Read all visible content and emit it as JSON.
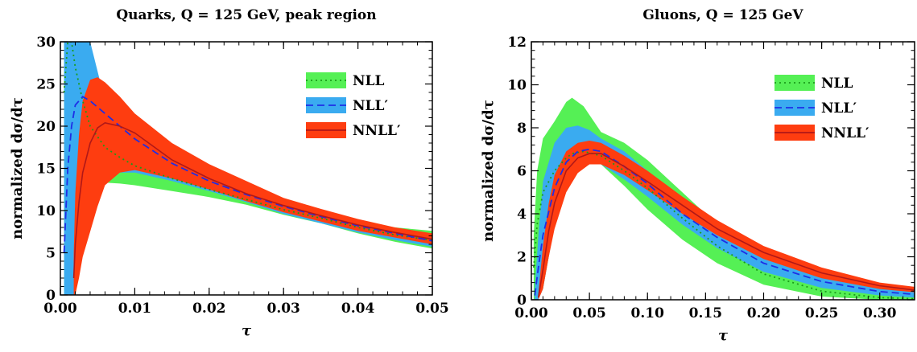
{
  "chart_data": [
    {
      "type": "area",
      "title": "Quarks, Q = 125 GeV, peak region",
      "xlabel": "τ",
      "ylabel": "normalized dσ/dτ",
      "xlim": [
        0,
        0.05
      ],
      "ylim": [
        0,
        30
      ],
      "xticks": [
        "0.00",
        "0.01",
        "0.02",
        "0.03",
        "0.04",
        "0.05"
      ],
      "yticks": [
        "0",
        "5",
        "10",
        "15",
        "20",
        "25",
        "30"
      ],
      "legend_position": "top-right",
      "series": [
        {
          "name": "NLL",
          "color": "#1a9c1a",
          "band_color": "#55f055",
          "style": "dotted",
          "x": [
            0.0005,
            0.001,
            0.0015,
            0.002,
            0.003,
            0.004,
            0.006,
            0.008,
            0.01,
            0.015,
            0.02,
            0.025,
            0.03,
            0.035,
            0.04,
            0.045,
            0.05
          ],
          "lower": [
            0,
            0,
            2,
            8,
            12.5,
            13,
            13.3,
            13.2,
            13,
            12.3,
            11.6,
            10.7,
            9.5,
            8.5,
            7.3,
            6.3,
            5.5
          ],
          "upper": [
            30,
            30,
            30,
            30,
            30,
            26,
            20,
            17.5,
            16,
            14.5,
            13.2,
            11.8,
            10.5,
            9.6,
            8.8,
            8,
            7.6
          ],
          "central": [
            24,
            30,
            30,
            27,
            23,
            20,
            17.5,
            16.3,
            15.3,
            13.8,
            12.5,
            11.3,
            10.1,
            9.1,
            8,
            7.1,
            6.5
          ]
        },
        {
          "name": "NLL′",
          "color": "#1e2ee6",
          "band_color": "#3aabf0",
          "style": "dashed",
          "x": [
            0.0005,
            0.001,
            0.0015,
            0.002,
            0.003,
            0.004,
            0.006,
            0.008,
            0.01,
            0.015,
            0.02,
            0.025,
            0.03,
            0.035,
            0.04,
            0.045,
            0.05
          ],
          "lower": [
            0,
            0,
            0,
            0,
            5,
            10,
            13.5,
            14.5,
            14.5,
            13.5,
            12.3,
            11,
            9.6,
            8.5,
            7.4,
            6.5,
            5.7
          ],
          "upper": [
            30,
            30,
            30,
            30,
            30,
            30,
            23,
            20.5,
            18.5,
            16,
            14.3,
            12.6,
            11,
            9.8,
            8.6,
            7.6,
            7
          ],
          "central": [
            5,
            15,
            20,
            22.5,
            23.5,
            23,
            21.5,
            20,
            18.5,
            15.6,
            13.5,
            11.9,
            10.5,
            9.3,
            8.2,
            7.3,
            6.4
          ]
        },
        {
          "name": "NNLL′",
          "color": "#b01818",
          "band_color": "#fe3d10",
          "style": "solid",
          "x": [
            0.0018,
            0.002,
            0.0025,
            0.003,
            0.004,
            0.005,
            0.006,
            0.008,
            0.01,
            0.015,
            0.02,
            0.025,
            0.03,
            0.035,
            0.04,
            0.045,
            0.05
          ],
          "lower": [
            0,
            0,
            2,
            4.5,
            7.5,
            10.5,
            13,
            14.5,
            14.8,
            13.8,
            12.5,
            11.1,
            9.8,
            8.7,
            7.6,
            6.8,
            6
          ],
          "upper": [
            5,
            12,
            19,
            23,
            25.5,
            25.8,
            25.2,
            23.5,
            21.5,
            18,
            15.5,
            13.5,
            11.5,
            10.2,
            9,
            8,
            7.3
          ],
          "central": [
            2,
            6,
            11,
            14.5,
            18,
            19.8,
            20.4,
            20,
            19.2,
            16,
            13.8,
            12,
            10.6,
            9.4,
            8.3,
            7.4,
            6.6
          ]
        }
      ]
    },
    {
      "type": "area",
      "title": "Gluons, Q = 125 GeV",
      "xlabel": "τ",
      "ylabel": "normalized dσ/dτ",
      "xlim": [
        0,
        0.33
      ],
      "ylim": [
        0,
        12
      ],
      "xticks": [
        "0.00",
        "0.05",
        "0.10",
        "0.15",
        "0.20",
        "0.25",
        "0.30"
      ],
      "yticks": [
        "0",
        "2",
        "4",
        "6",
        "8",
        "10",
        "12"
      ],
      "legend_position": "top-right",
      "series": [
        {
          "name": "NLL",
          "color": "#1a9c1a",
          "band_color": "#55f055",
          "style": "dotted",
          "x": [
            0.002,
            0.005,
            0.01,
            0.02,
            0.03,
            0.035,
            0.045,
            0.06,
            0.08,
            0.1,
            0.13,
            0.16,
            0.2,
            0.25,
            0.3,
            0.33
          ],
          "lower": [
            0,
            0,
            0.5,
            3.5,
            5.5,
            6.2,
            6.5,
            6.3,
            5.3,
            4.2,
            2.8,
            1.7,
            0.7,
            0.15,
            0,
            0
          ],
          "upper": [
            3,
            6,
            7.5,
            8.3,
            9.2,
            9.4,
            9,
            7.8,
            7.3,
            6.5,
            5,
            3.5,
            2,
            0.8,
            0.3,
            0.15
          ],
          "central": [
            1.5,
            3.5,
            5,
            6,
            6.6,
            6.8,
            6.9,
            6.7,
            6,
            5.2,
            3.8,
            2.5,
            1.2,
            0.4,
            0.1,
            0.05
          ]
        },
        {
          "name": "NLL′",
          "color": "#1e2ee6",
          "band_color": "#3aabf0",
          "style": "dashed",
          "x": [
            0.003,
            0.006,
            0.01,
            0.02,
            0.03,
            0.04,
            0.05,
            0.06,
            0.08,
            0.1,
            0.13,
            0.16,
            0.2,
            0.25,
            0.3,
            0.33
          ],
          "lower": [
            0,
            0,
            0.5,
            3.5,
            5.3,
            6,
            6.3,
            6.3,
            5.6,
            4.8,
            3.5,
            2.4,
            1.3,
            0.55,
            0.2,
            0.1
          ],
          "upper": [
            0.5,
            3,
            5.5,
            7.3,
            8,
            8.1,
            7.9,
            7.5,
            6.9,
            6,
            4.6,
            3.4,
            2.1,
            1.1,
            0.55,
            0.4
          ],
          "central": [
            0.2,
            1.5,
            3,
            5.2,
            6.4,
            6.9,
            7,
            6.9,
            6.2,
            5.4,
            4,
            2.9,
            1.7,
            0.85,
            0.38,
            0.25
          ]
        },
        {
          "name": "NNLL′",
          "color": "#b01818",
          "band_color": "#fe3d10",
          "style": "solid",
          "x": [
            0.006,
            0.01,
            0.015,
            0.02,
            0.03,
            0.04,
            0.05,
            0.06,
            0.08,
            0.1,
            0.13,
            0.16,
            0.2,
            0.25,
            0.3,
            0.33
          ],
          "lower": [
            0,
            0.5,
            2,
            3.3,
            5,
            5.9,
            6.3,
            6.3,
            5.8,
            5.1,
            4,
            3,
            1.9,
            1,
            0.5,
            0.35
          ],
          "upper": [
            0.3,
            2.5,
            4.5,
            5.8,
            6.9,
            7.3,
            7.4,
            7.3,
            6.7,
            6,
            4.8,
            3.7,
            2.5,
            1.5,
            0.8,
            0.6
          ],
          "central": [
            0.1,
            1.4,
            3.2,
            4.5,
            6,
            6.6,
            6.8,
            6.8,
            6.2,
            5.5,
            4.4,
            3.3,
            2.2,
            1.25,
            0.65,
            0.45
          ]
        }
      ]
    }
  ]
}
